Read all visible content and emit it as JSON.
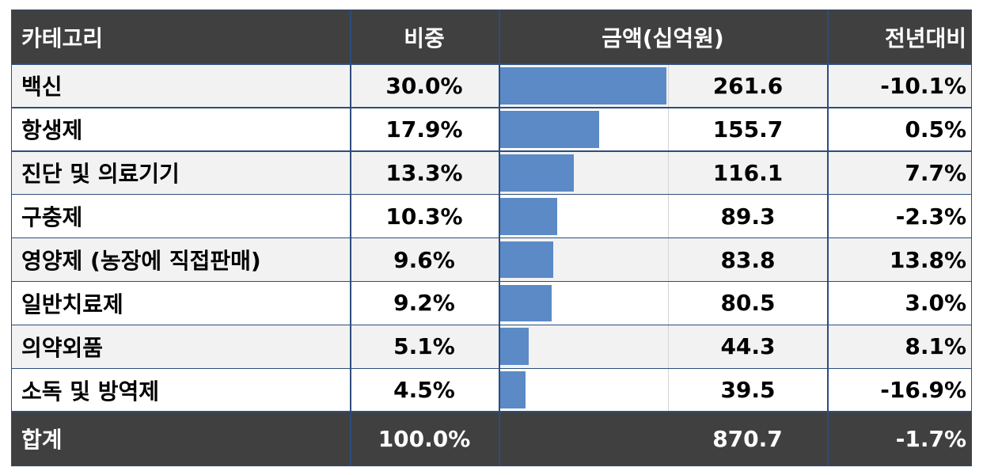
{
  "headers": [
    "카테고리",
    "비중",
    "금액(십억원)",
    "전년대비"
  ],
  "chart_data": {
    "type": "table",
    "columns": [
      "카테고리",
      "비중",
      "금액(십억원)",
      "전년대비"
    ],
    "rows": [
      {
        "category": "백신",
        "share": "30.0%",
        "amount": 261.6,
        "amount_text": "261.6",
        "yoy": "-10.1%"
      },
      {
        "category": "항생제",
        "share": "17.9%",
        "amount": 155.7,
        "amount_text": "155.7",
        "yoy": "0.5%"
      },
      {
        "category": "진단 및 의료기기",
        "share": "13.3%",
        "amount": 116.1,
        "amount_text": "116.1",
        "yoy": "7.7%"
      },
      {
        "category": "구충제",
        "share": "10.3%",
        "amount": 89.3,
        "amount_text": "89.3",
        "yoy": "-2.3%"
      },
      {
        "category": "영양제 (농장에 직접판매)",
        "share": "9.6%",
        "amount": 83.8,
        "amount_text": "83.8",
        "yoy": "13.8%"
      },
      {
        "category": "일반치료제",
        "share": "9.2%",
        "amount": 80.5,
        "amount_text": "80.5",
        "yoy": "3.0%"
      },
      {
        "category": "의약외품",
        "share": "5.1%",
        "amount": 44.3,
        "amount_text": "44.3",
        "yoy": "8.1%"
      },
      {
        "category": "소독 및 방역제",
        "share": "4.5%",
        "amount": 39.5,
        "amount_text": "39.5",
        "yoy": "-16.9%"
      }
    ],
    "total": {
      "category": "합계",
      "share": "100.0%",
      "amount_text": "870.7",
      "yoy": "-1.7%"
    },
    "bar_color": "#5b8ac6"
  },
  "colors": {
    "header_bg": "#404040",
    "row_alt": "#f2f2f2",
    "border": "#2d4d7c",
    "bar": "#5b8ac6"
  }
}
